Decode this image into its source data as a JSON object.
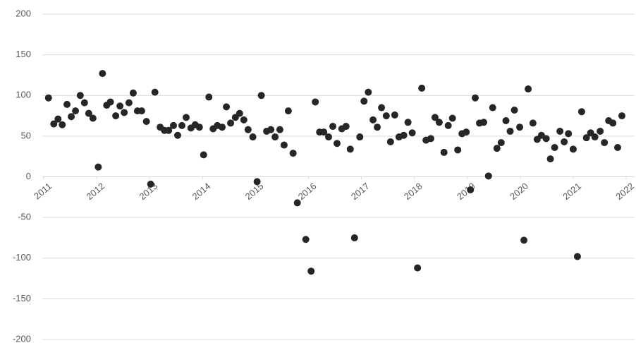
{
  "chart_data": {
    "type": "scatter",
    "color": "#262626",
    "grid": true,
    "xlim": [
      2011,
      2022
    ],
    "xticks": [
      2011,
      2012,
      2013,
      2014,
      2015,
      2016,
      2017,
      2018,
      2019,
      2020,
      2021,
      2022
    ],
    "ylim": [
      -200,
      200
    ],
    "yticks": [
      -200,
      -150,
      -100,
      -50,
      0,
      50,
      100,
      150,
      200
    ],
    "x": [
      2011.09,
      2011.19,
      2011.27,
      2011.35,
      2011.44,
      2011.52,
      2011.6,
      2011.69,
      2011.77,
      2011.85,
      2011.93,
      2012.03,
      2012.11,
      2012.19,
      2012.26,
      2012.36,
      2012.44,
      2012.52,
      2012.61,
      2012.69,
      2012.77,
      2012.85,
      2012.94,
      2013.02,
      2013.1,
      2013.2,
      2013.28,
      2013.36,
      2013.45,
      2013.53,
      2013.61,
      2013.69,
      2013.78,
      2013.86,
      2013.94,
      2014.02,
      2014.12,
      2014.2,
      2014.28,
      2014.37,
      2014.45,
      2014.53,
      2014.62,
      2014.7,
      2014.78,
      2014.86,
      2014.95,
      2015.03,
      2015.11,
      2015.21,
      2015.29,
      2015.37,
      2015.46,
      2015.54,
      2015.62,
      2015.71,
      2015.79,
      2015.95,
      2016.05,
      2016.13,
      2016.21,
      2016.29,
      2016.38,
      2016.46,
      2016.54,
      2016.63,
      2016.71,
      2016.79,
      2016.87,
      2016.97,
      2017.05,
      2017.13,
      2017.22,
      2017.3,
      2017.38,
      2017.47,
      2017.55,
      2017.63,
      2017.71,
      2017.8,
      2017.88,
      2017.96,
      2018.06,
      2018.14,
      2018.22,
      2018.31,
      2018.39,
      2018.47,
      2018.56,
      2018.64,
      2018.72,
      2018.82,
      2018.9,
      2018.98,
      2019.06,
      2019.15,
      2019.23,
      2019.31,
      2019.4,
      2019.48,
      2019.56,
      2019.64,
      2019.73,
      2019.81,
      2019.89,
      2019.99,
      2020.07,
      2020.15,
      2020.24,
      2020.32,
      2020.4,
      2020.49,
      2020.57,
      2020.65,
      2020.75,
      2020.83,
      2020.91,
      2021.0,
      2021.08,
      2021.16,
      2021.25,
      2021.33,
      2021.41,
      2021.51,
      2021.59,
      2021.67,
      2021.75,
      2021.84,
      2021.92
    ],
    "values": [
      97,
      65,
      71,
      64,
      89,
      74,
      81,
      100,
      91,
      78,
      72,
      12,
      127,
      88,
      92,
      75,
      87,
      79,
      91,
      103,
      81,
      81,
      68,
      -9,
      104,
      61,
      57,
      57,
      63,
      51,
      63,
      73,
      60,
      64,
      61,
      27,
      98,
      59,
      63,
      61,
      86,
      66,
      73,
      78,
      70,
      58,
      49,
      -6,
      100,
      56,
      58,
      49,
      58,
      39,
      81,
      29,
      -32,
      -77,
      -116,
      92,
      55,
      55,
      49,
      62,
      41,
      59,
      62,
      34,
      -75,
      49,
      93,
      104,
      70,
      61,
      85,
      75,
      43,
      76,
      49,
      51,
      67,
      54,
      -112,
      109,
      45,
      47,
      73,
      67,
      30,
      63,
      72,
      33,
      53,
      55,
      -16,
      97,
      66,
      67,
      1,
      85,
      35,
      42,
      69,
      56,
      82,
      61,
      -78,
      108,
      66,
      46,
      51,
      47,
      22,
      36,
      56,
      43,
      53,
      34,
      -98,
      80,
      48,
      54,
      49,
      56,
      42,
      69,
      66,
      36,
      75
    ]
  }
}
